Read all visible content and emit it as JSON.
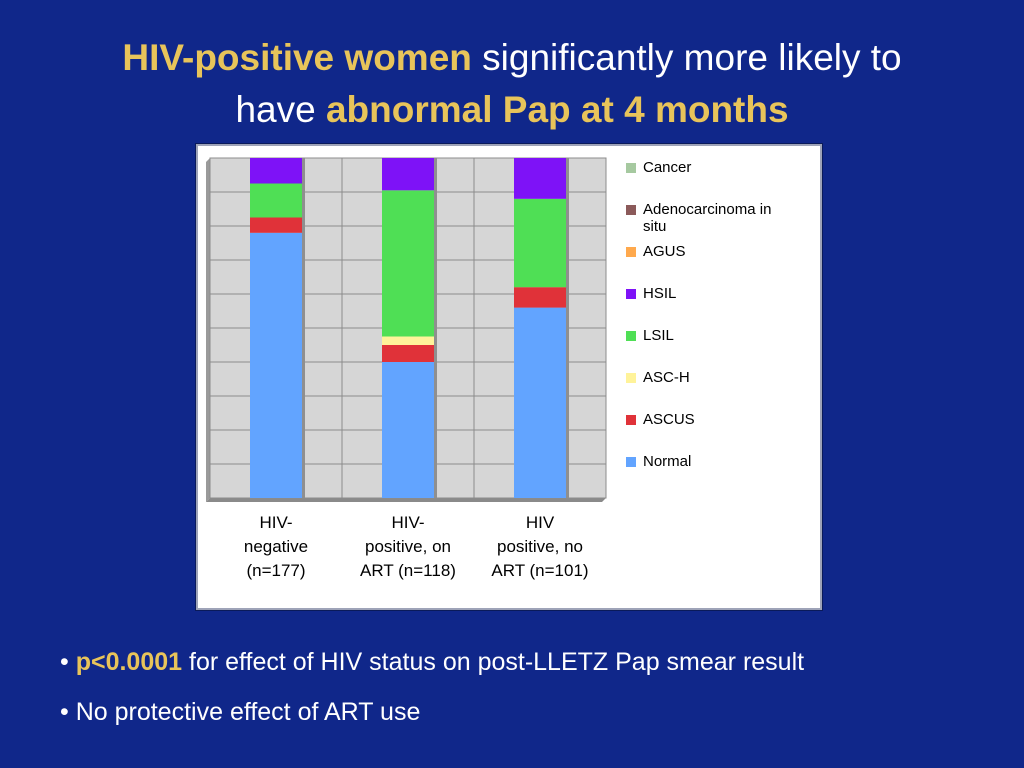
{
  "title": {
    "part1": "HIV-positive women",
    "part2": " significantly more likely to",
    "part3": "have ",
    "part4": "abnormal Pap at 4 months"
  },
  "bullets": [
    {
      "prefix": "• ",
      "highlight": "p<0.0001",
      "text": " for effect of HIV status on post-LLETZ Pap smear result"
    },
    {
      "prefix": "• ",
      "highlight": "",
      "text": "No protective effect of ART use"
    }
  ],
  "chart_data": {
    "type": "bar",
    "stacked": true,
    "percent_stacked": true,
    "categories": [
      [
        "HIV-",
        "negative",
        "(n=177)"
      ],
      [
        "HIV-",
        "positive, on",
        "ART (n=118)"
      ],
      [
        "HIV",
        "positive, no",
        "ART (n=101)"
      ]
    ],
    "series": [
      {
        "name": "Normal",
        "color": "#62a4ff",
        "values": [
          78,
          40,
          56
        ]
      },
      {
        "name": "ASCUS",
        "color": "#e03239",
        "values": [
          4.5,
          5,
          6
        ]
      },
      {
        "name": "ASC-H",
        "color": "#fff39a",
        "values": [
          0,
          2.5,
          0
        ]
      },
      {
        "name": "LSIL",
        "color": "#4fdf55",
        "values": [
          10,
          43,
          26
        ]
      },
      {
        "name": "HSIL",
        "color": "#7e12f7",
        "values": [
          7.5,
          9.5,
          12
        ]
      },
      {
        "name": "AGUS",
        "color": "#ffa94d",
        "values": [
          0,
          0,
          0
        ]
      },
      {
        "name": "Adenocarcinoma in situ",
        "color": "#8b5a5a",
        "values": [
          0,
          0,
          0
        ]
      },
      {
        "name": "Cancer",
        "color": "#a6c9a0",
        "values": [
          0,
          0,
          0
        ]
      }
    ],
    "legend_items": [
      {
        "lines": [
          "Cancer"
        ],
        "color": "#a6c9a0"
      },
      {
        "lines": [
          "Adenocarcinoma in",
          "situ"
        ],
        "color": "#8b5a5a"
      },
      {
        "lines": [
          "AGUS"
        ],
        "color": "#ffa94d"
      },
      {
        "lines": [
          "HSIL"
        ],
        "color": "#7e12f7"
      },
      {
        "lines": [
          "LSIL"
        ],
        "color": "#4fdf55"
      },
      {
        "lines": [
          "ASC-H"
        ],
        "color": "#fff39a"
      },
      {
        "lines": [
          "ASCUS"
        ],
        "color": "#e03239"
      },
      {
        "lines": [
          "Normal"
        ],
        "color": "#62a4ff"
      }
    ],
    "ylim": [
      0,
      100
    ],
    "grid": true,
    "legend_position": "right"
  }
}
